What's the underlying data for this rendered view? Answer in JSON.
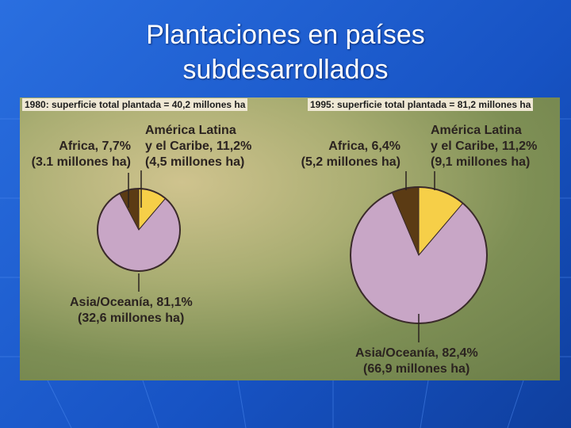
{
  "slide_title": "Plantaciones en países subdesarrollados",
  "chart_data": [
    {
      "type": "pie",
      "title": "1980: superficie total plantada = 40,2 millones ha",
      "values": [
        11.2,
        81.1,
        7.7
      ],
      "value_labels": [
        "América Latina\ny el Caribe, 11,2%",
        "Asia/Oceanía, 81,1%",
        "Africa, 7,7%"
      ],
      "areas": [
        "(4,5 millones ha)",
        "(32,6 millones ha)",
        "(3.1 millones ha)"
      ],
      "colors": [
        "#f6cf48",
        "#c8a6c6",
        "#5b3b14"
      ]
    },
    {
      "type": "pie",
      "title": "1995: superficie total plantada = 81,2 millones ha",
      "values": [
        11.2,
        82.4,
        6.4
      ],
      "value_labels": [
        "América Latina\ny el Caribe, 11,2%",
        "Asia/Oceanía, 82,4%",
        "Africa, 6,4%"
      ],
      "areas": [
        "(9,1 millones ha)",
        "(66,9 millones ha)",
        "(5,2 millones ha)"
      ],
      "colors": [
        "#f6cf48",
        "#c8a6c6",
        "#5b3b14"
      ]
    }
  ]
}
